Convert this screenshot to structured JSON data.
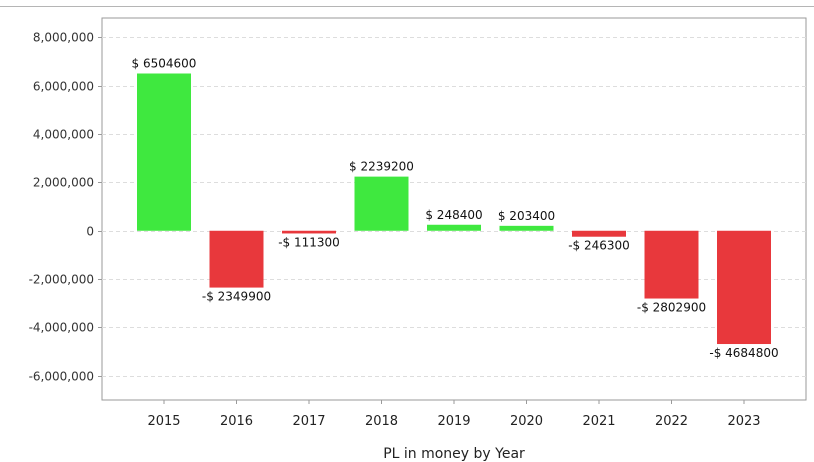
{
  "chart_data": {
    "type": "bar",
    "categories": [
      "2015",
      "2016",
      "2017",
      "2018",
      "2019",
      "2020",
      "2021",
      "2022",
      "2023"
    ],
    "values": [
      6504600,
      -2349900,
      -111300,
      2239200,
      248400,
      203400,
      -246300,
      -2802900,
      -4684800
    ],
    "data_labels": [
      "$ 6504600",
      "-$ 2349900",
      "-$ 111300",
      "$ 2239200",
      "$ 248400",
      "$ 203400",
      "-$ 246300",
      "-$ 2802900",
      "-$ 4684800"
    ],
    "title": "",
    "xlabel": "PL in money by Year",
    "ylabel": "",
    "ylim": [
      -7000000,
      8800000
    ],
    "yticks": [
      8000000,
      6000000,
      4000000,
      2000000,
      0,
      -2000000,
      -4000000,
      -6000000
    ],
    "ytick_labels": [
      "8,000,000",
      "6,000,000",
      "4,000,000",
      "2,000,000",
      "0",
      "-2,000,000",
      "-4,000,000",
      "-6,000,000"
    ],
    "grid": true,
    "colors": {
      "positive": "#3fe83f",
      "negative": "#e8383c",
      "grid": "#dddddd",
      "axis": "#9a9a9a"
    }
  }
}
